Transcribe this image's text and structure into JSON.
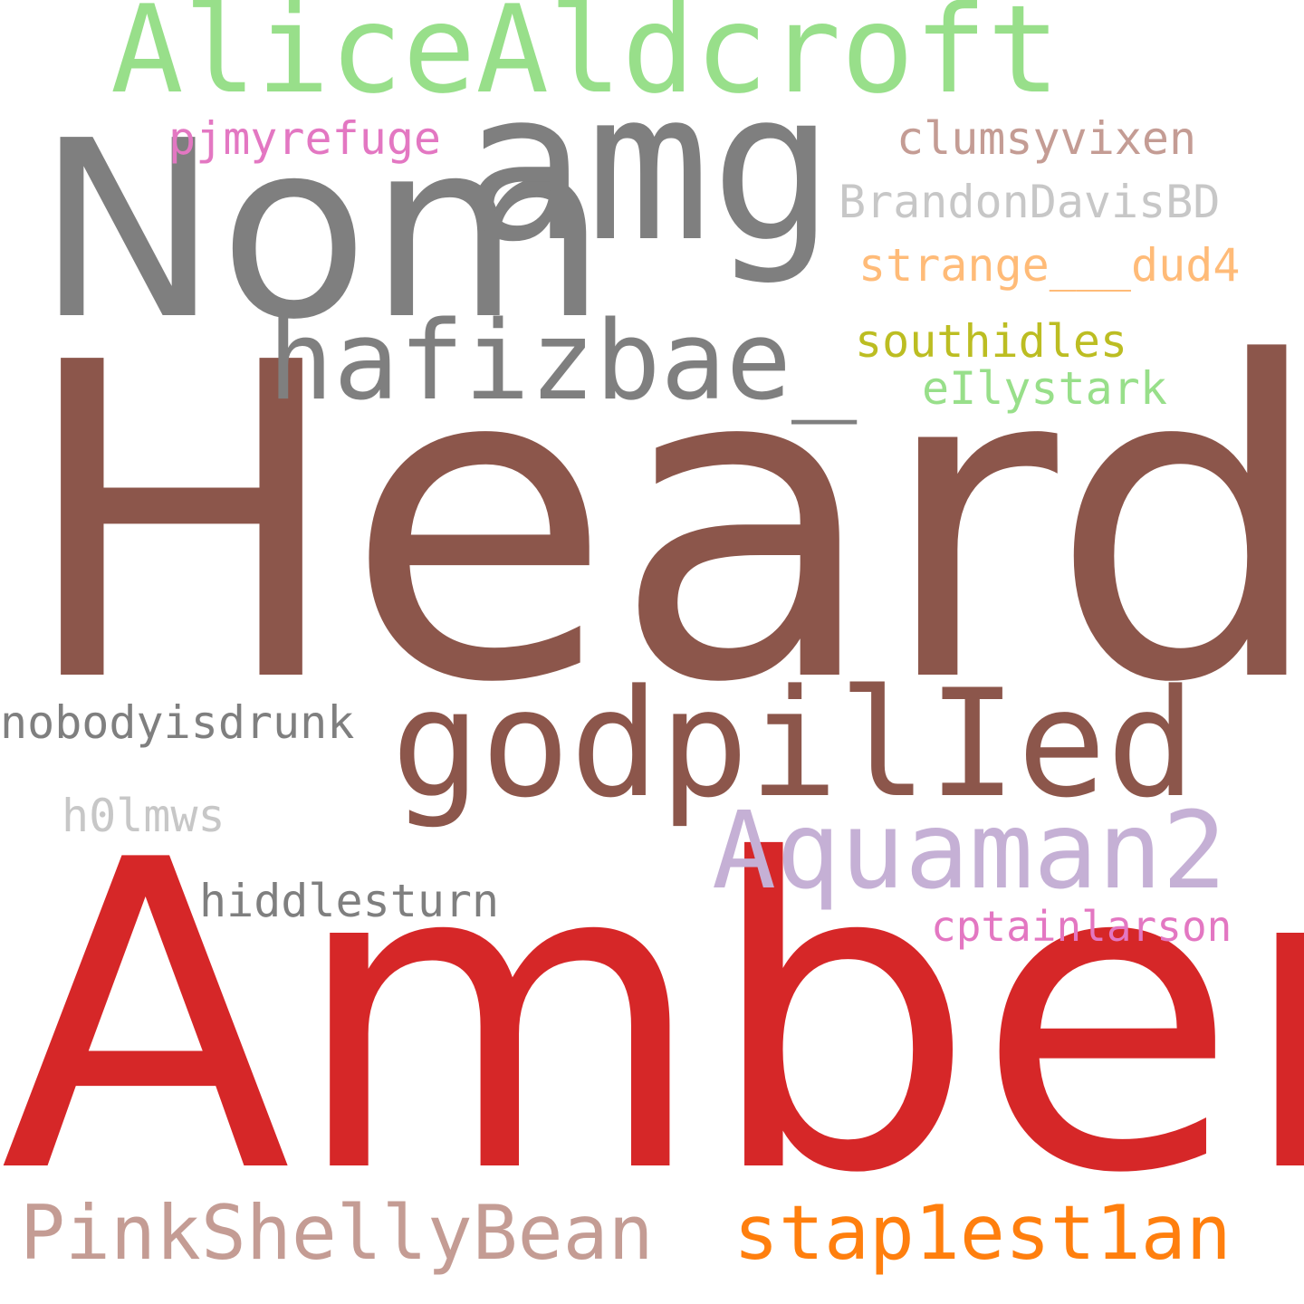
{
  "palette": {
    "background": "#ffffff",
    "brown": "#8c564b",
    "red": "#d62728",
    "gray": "#7f7f7f",
    "light_green": "#98df8a",
    "pink": "#e377c2",
    "lavender": "#c5b0d5",
    "light_gray": "#c7c7c7",
    "peach": "#ffbb78",
    "olive": "#bcbd22",
    "rose_brown": "#c49c94",
    "orange": "#ff7f0e"
  },
  "words": {
    "w_heard": "Heard",
    "w_amber": "Amber",
    "w_nom": "Nom",
    "w_amg": "amg",
    "w_alice": "AliceAldcroft",
    "w_hafiz": "hafizbae_",
    "w_godpilled": "godpilIed",
    "w_aquaman": "Aquaman2",
    "w_pinkshelly": "PinkShellyBean",
    "w_staplestian": "stap1est1an",
    "w_pjmy": "pjmyrefuge",
    "w_clumsy": "clumsyvixen",
    "w_brandon": "BrandonDavisBD",
    "w_strange": "strange___dud4",
    "w_southidles": "southidles",
    "w_elly": "eIlystark",
    "w_nobody": "nobodyisdrunk",
    "w_h0lmws": "h0lmws",
    "w_hiddlesturn": "hiddlesturn",
    "w_cptain": "cptainlarson"
  }
}
